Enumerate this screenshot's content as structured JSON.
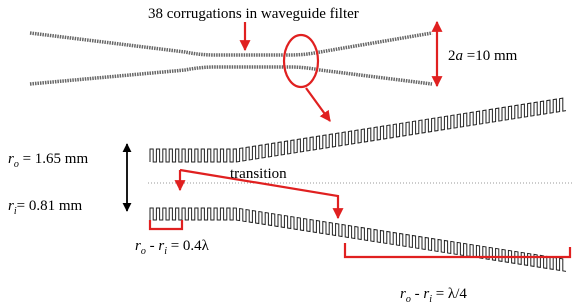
{
  "labels": {
    "filter_note": "38 corrugations in waveguide filter",
    "diameter": {
      "prefix": "2",
      "symbol": "a",
      "text": " =10 mm"
    },
    "outer_radius": {
      "symbol": "r",
      "subscript": "o",
      "text": " = 1.65 mm"
    },
    "inner_radius": {
      "symbol": "r",
      "subscript": "i",
      "text": "= 0.81 mm"
    },
    "transition": "transition",
    "depth_short": {
      "symbol1": "r",
      "sub1": "o",
      "minus": " - ",
      "symbol2": "r",
      "sub2": "i",
      "text": " = 0.4λ"
    },
    "depth_quarter": {
      "symbol1": "r",
      "sub1": "o",
      "minus": " - ",
      "symbol2": "r",
      "sub2": "i",
      "text": " = λ/4"
    }
  }
}
